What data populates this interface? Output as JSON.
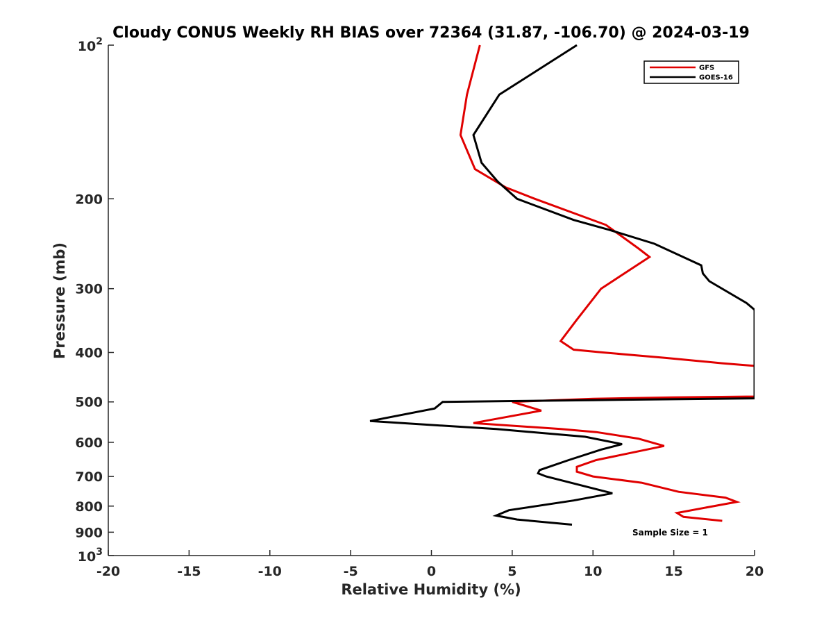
{
  "chart_data": {
    "type": "line",
    "title": "Cloudy CONUS Weekly RH BIAS over 72364 (31.87, -106.70) @ 2024-03-19",
    "xlabel": "Relative Humidity (%)",
    "ylabel": "Pressure (mb)",
    "xlim": [
      -20,
      20
    ],
    "ylim": [
      100,
      1000
    ],
    "y_scale": "log",
    "y_reversed": true,
    "grid": false,
    "legend_position": "top-right",
    "note": "Sample Size = 1",
    "x_ticks": [
      "-20",
      "-15",
      "-10",
      "-5",
      "0",
      "5",
      "10",
      "15",
      "20"
    ],
    "y_ticks": [
      {
        "value": 100,
        "base": "10",
        "exp": "2"
      },
      {
        "value": 200,
        "label": "200"
      },
      {
        "value": 300,
        "label": "300"
      },
      {
        "value": 400,
        "label": "400"
      },
      {
        "value": 500,
        "label": "500"
      },
      {
        "value": 600,
        "label": "600"
      },
      {
        "value": 700,
        "label": "700"
      },
      {
        "value": 800,
        "label": "800"
      },
      {
        "value": 900,
        "label": "900"
      },
      {
        "value": 1000,
        "base": "10",
        "exp": "3"
      }
    ],
    "series": [
      {
        "name": "GFS",
        "color": "#e00000",
        "points": [
          [
            3.0,
            100
          ],
          [
            2.2,
            125
          ],
          [
            1.8,
            150
          ],
          [
            2.7,
            175
          ],
          [
            4.6,
            190
          ],
          [
            6.4,
            200
          ],
          [
            10.8,
            225
          ],
          [
            12.8,
            250
          ],
          [
            13.5,
            260
          ],
          [
            10.5,
            300
          ],
          [
            9.0,
            345
          ],
          [
            8.0,
            380
          ],
          [
            8.8,
            395
          ],
          [
            10.6,
            400
          ],
          [
            14.5,
            410
          ],
          [
            18.0,
            420
          ],
          [
            20.0,
            425
          ],
          [
            20.0,
            488
          ],
          [
            15.0,
            490
          ],
          [
            10.0,
            493
          ],
          [
            5.0,
            500
          ],
          [
            6.8,
            520
          ],
          [
            2.6,
            550
          ],
          [
            8.0,
            565
          ],
          [
            10.2,
            573
          ],
          [
            12.8,
            590
          ],
          [
            14.4,
            610
          ],
          [
            10.2,
            650
          ],
          [
            9.0,
            670
          ],
          [
            9.0,
            685
          ],
          [
            10.0,
            700
          ],
          [
            13.0,
            720
          ],
          [
            15.3,
            750
          ],
          [
            18.2,
            770
          ],
          [
            18.9,
            785
          ],
          [
            15.2,
            825
          ],
          [
            15.6,
            840
          ],
          [
            18.0,
            855
          ]
        ]
      },
      {
        "name": "GOES-16",
        "color": "#000000",
        "points": [
          [
            9.0,
            100
          ],
          [
            4.2,
            125
          ],
          [
            2.6,
            150
          ],
          [
            3.1,
            170
          ],
          [
            4.1,
            185
          ],
          [
            5.3,
            200
          ],
          [
            8.8,
            220
          ],
          [
            11.0,
            230
          ],
          [
            13.8,
            245
          ],
          [
            16.7,
            270
          ],
          [
            16.8,
            280
          ],
          [
            17.2,
            290
          ],
          [
            19.5,
            320
          ],
          [
            20.0,
            330
          ],
          [
            20.0,
            492
          ],
          [
            10.0,
            496
          ],
          [
            5.0,
            498
          ],
          [
            0.7,
            500
          ],
          [
            0.2,
            515
          ],
          [
            -3.8,
            545
          ],
          [
            4.0,
            565
          ],
          [
            9.5,
            585
          ],
          [
            11.8,
            605
          ],
          [
            10.5,
            620
          ],
          [
            8.5,
            650
          ],
          [
            6.7,
            680
          ],
          [
            6.6,
            690
          ],
          [
            7.1,
            700
          ],
          [
            9.0,
            725
          ],
          [
            11.2,
            755
          ],
          [
            8.8,
            780
          ],
          [
            4.8,
            815
          ],
          [
            4.0,
            835
          ],
          [
            5.3,
            850
          ],
          [
            8.7,
            870
          ]
        ]
      }
    ]
  }
}
